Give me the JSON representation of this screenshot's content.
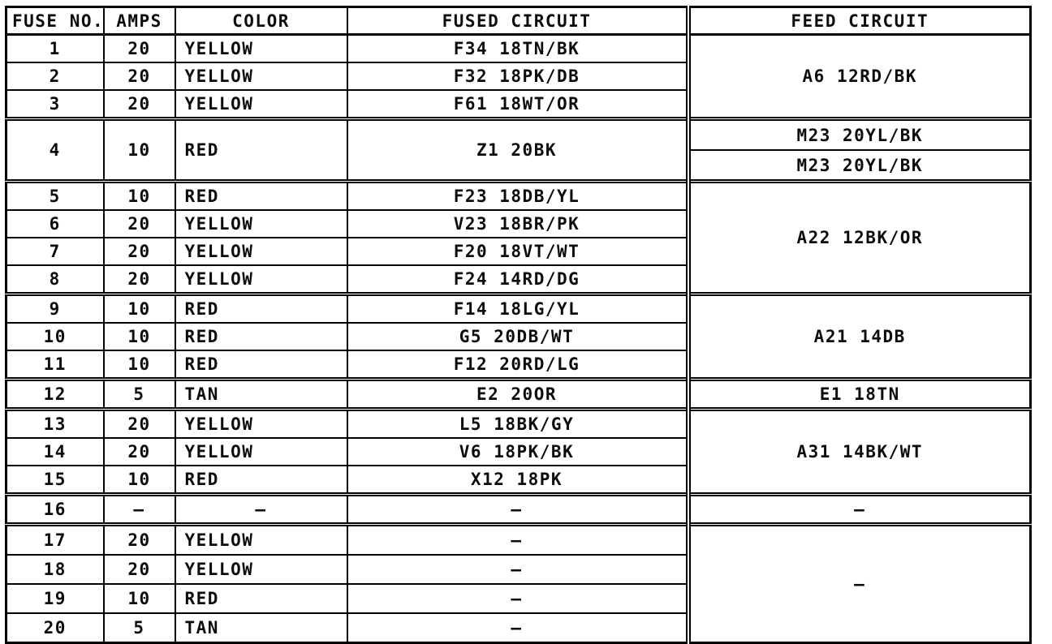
{
  "table": {
    "headers": {
      "fuse_no": "FUSE NO.",
      "amps": "AMPS",
      "color": "COLOR",
      "fused_circuit": "FUSED CIRCUIT",
      "feed_circuit": "FEED CIRCUIT"
    },
    "rows": [
      {
        "fuse": "1",
        "amps": "20",
        "color": "YELLOW",
        "fused": "F34 18TN/BK"
      },
      {
        "fuse": "2",
        "amps": "20",
        "color": "YELLOW",
        "fused": "F32 18PK/DB"
      },
      {
        "fuse": "3",
        "amps": "20",
        "color": "YELLOW",
        "fused": "F61 18WT/OR"
      },
      {
        "fuse": "4",
        "amps": "10",
        "color": "RED",
        "fused": "Z1 20BK"
      },
      {
        "fuse": "5",
        "amps": "10",
        "color": "RED",
        "fused": "F23 18DB/YL"
      },
      {
        "fuse": "6",
        "amps": "20",
        "color": "YELLOW",
        "fused": "V23 18BR/PK"
      },
      {
        "fuse": "7",
        "amps": "20",
        "color": "YELLOW",
        "fused": "F20 18VT/WT"
      },
      {
        "fuse": "8",
        "amps": "20",
        "color": "YELLOW",
        "fused": "F24 14RD/DG"
      },
      {
        "fuse": "9",
        "amps": "10",
        "color": "RED",
        "fused": "F14 18LG/YL"
      },
      {
        "fuse": "10",
        "amps": "10",
        "color": "RED",
        "fused": "G5 20DB/WT"
      },
      {
        "fuse": "11",
        "amps": "10",
        "color": "RED",
        "fused": "F12 20RD/LG"
      },
      {
        "fuse": "12",
        "amps": "5",
        "color": "TAN",
        "fused": "E2 20OR"
      },
      {
        "fuse": "13",
        "amps": "20",
        "color": "YELLOW",
        "fused": "L5 18BK/GY"
      },
      {
        "fuse": "14",
        "amps": "20",
        "color": "YELLOW",
        "fused": "V6 18PK/BK"
      },
      {
        "fuse": "15",
        "amps": "10",
        "color": "RED",
        "fused": "X12 18PK"
      },
      {
        "fuse": "16",
        "amps": "–",
        "color": "–",
        "fused": "–"
      },
      {
        "fuse": "17",
        "amps": "20",
        "color": "YELLOW",
        "fused": "–"
      },
      {
        "fuse": "18",
        "amps": "20",
        "color": "YELLOW",
        "fused": "–"
      },
      {
        "fuse": "19",
        "amps": "10",
        "color": "RED",
        "fused": "–"
      },
      {
        "fuse": "20",
        "amps": "5",
        "color": "TAN",
        "fused": "–"
      }
    ],
    "feeds": {
      "a6": "A6 12RD/BK",
      "m23_top": "M23 20YL/BK",
      "m23_bottom": "M23 20YL/BK",
      "a22": "A22 12BK/OR",
      "a21": "A21 14DB",
      "e1": "E1 18TN",
      "a31": "A31 14BK/WT",
      "dash_row16": "–",
      "dash_rows17_20": "–"
    }
  }
}
